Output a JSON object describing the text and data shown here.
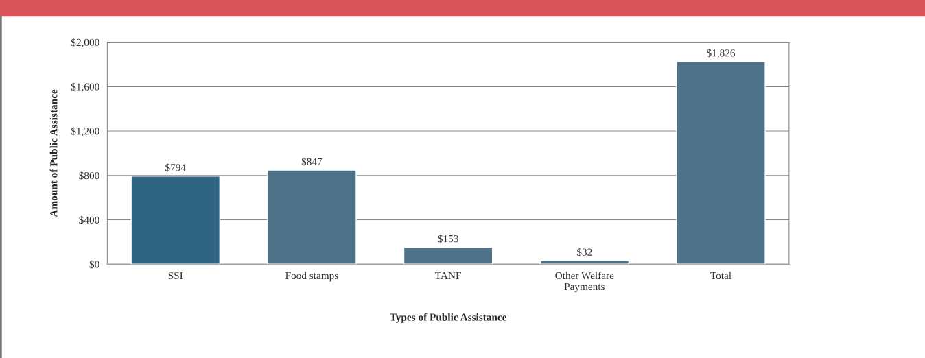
{
  "chart_data": {
    "type": "bar",
    "xlabel": "Types of Public Assistance",
    "ylabel": "Amount of Public Assistance",
    "categories": [
      "SSI",
      "Food stamps",
      "TANF",
      "Other Welfare\nPayments",
      "Total"
    ],
    "values": [
      794,
      847,
      153,
      32,
      1826
    ],
    "value_labels": [
      "$794",
      "$847",
      "$153",
      "$32",
      "$1,826"
    ],
    "colors": [
      "#2f6382",
      "#4e7389",
      "#4e7389",
      "#4e7389",
      "#4e7389"
    ],
    "ylim": [
      0,
      2000
    ],
    "yticks": [
      {
        "value": 0,
        "label": "$0"
      },
      {
        "value": 400,
        "label": "$400"
      },
      {
        "value": 800,
        "label": "$800"
      },
      {
        "value": 1200,
        "label": "$1,200"
      },
      {
        "value": 1600,
        "label": "$1,600"
      },
      {
        "value": 2000,
        "label": "$2,000"
      }
    ],
    "grid": "y",
    "legend": false
  }
}
